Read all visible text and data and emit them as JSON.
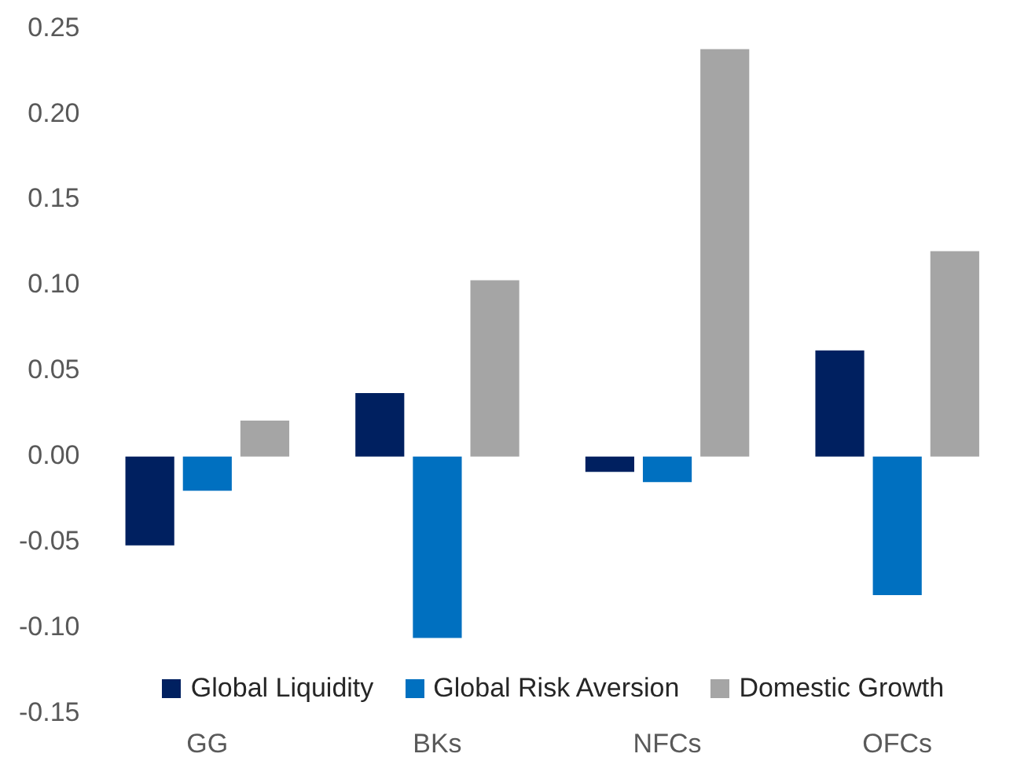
{
  "chart_data": {
    "type": "bar",
    "categories": [
      "GG",
      "BKs",
      "NFCs",
      "OFCs"
    ],
    "series": [
      {
        "name": "Global Liquidity",
        "color": "#002060",
        "values": [
          -0.052,
          0.037,
          -0.009,
          0.062
        ]
      },
      {
        "name": "Global Risk Aversion",
        "color": "#0070c0",
        "values": [
          -0.02,
          -0.106,
          -0.015,
          -0.081
        ]
      },
      {
        "name": "Domestic Growth",
        "color": "#a5a5a5",
        "values": [
          0.021,
          0.103,
          0.238,
          0.12
        ]
      }
    ],
    "ylim": [
      -0.15,
      0.25
    ],
    "yticks": [
      -0.15,
      {
        "value": -0.1,
        "label": "-0.10"
      },
      -0.05,
      {
        "value": 0,
        "label": "0.00"
      },
      0.05,
      {
        "value": 0.1,
        "label": "0.10"
      },
      0.15,
      {
        "value": 0.2,
        "label": "0.20"
      },
      0.25
    ],
    "grid": false,
    "legend": "bottom"
  }
}
